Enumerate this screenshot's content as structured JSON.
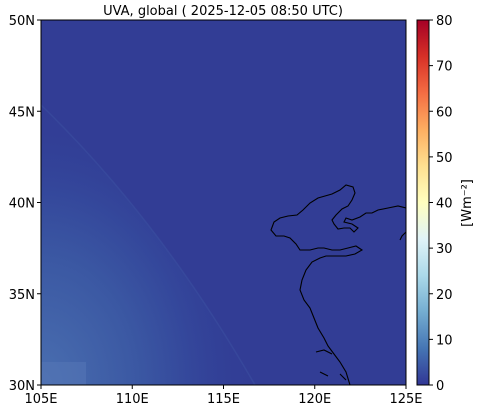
{
  "chart_data": {
    "type": "heatmap",
    "title": "UVA, global ( 2025-12-05 08:50 UTC)",
    "x_ticks": [
      "105E",
      "110E",
      "115E",
      "120E",
      "125E"
    ],
    "x_tick_values": [
      105,
      110,
      115,
      120,
      125
    ],
    "y_ticks": [
      "30N",
      "35N",
      "40N",
      "45N",
      "50N"
    ],
    "y_tick_values": [
      30,
      35,
      40,
      45,
      50
    ],
    "xlim": [
      105,
      125
    ],
    "ylim": [
      30,
      50
    ],
    "colorbar": {
      "label": "[Wm⁻²]",
      "ticks": [
        "0",
        "10",
        "20",
        "30",
        "40",
        "50",
        "60",
        "70",
        "80"
      ],
      "tick_values": [
        0,
        10,
        20,
        30,
        40,
        50,
        60,
        70,
        80
      ],
      "range": [
        0,
        80
      ],
      "colormap": "RdYlBu_r"
    },
    "field": {
      "background_value": 0,
      "max_value_lower_left": 4,
      "notes": "Night-side near 0 W m-2; faint twilight gradient in lower-left corner"
    },
    "coastline_color": "#000000"
  }
}
